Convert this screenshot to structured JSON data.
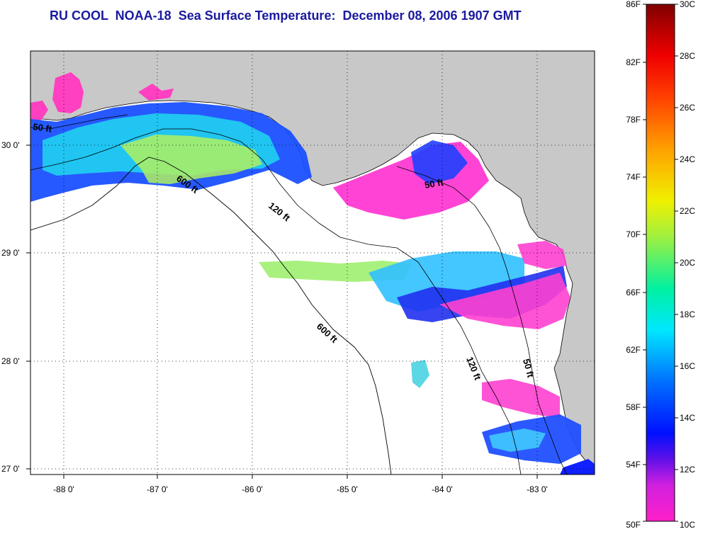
{
  "title": "RU COOL  NOAA-18  Sea Surface Temperature:  December 08, 2006 1907 GMT",
  "map": {
    "lat_labels": [
      "30 0'",
      "29 0'",
      "28 0'",
      "27 0'"
    ],
    "lon_labels": [
      "-88 0'",
      "-87 0'",
      "-86 0'",
      "-85 0'",
      "-84 0'",
      "-83 0'"
    ],
    "contour_labels": [
      "50 ft",
      "600 ft",
      "120 ft",
      "50 ft",
      "600 ft",
      "120 ft",
      "50 ft"
    ],
    "colors": {
      "land": "#c8c8c8",
      "ocean_nodata": "#ffffff",
      "title": "#1a1aa0"
    }
  },
  "colorbar": {
    "fahrenheit_labels": [
      "86F",
      "82F",
      "78F",
      "74F",
      "70F",
      "66F",
      "62F",
      "58F",
      "54F",
      "50F"
    ],
    "celsius_labels": [
      "30C",
      "28C",
      "26C",
      "24C",
      "22C",
      "20C",
      "18C",
      "16C",
      "14C",
      "12C",
      "10C"
    ],
    "range_c": [
      10,
      30
    ]
  }
}
